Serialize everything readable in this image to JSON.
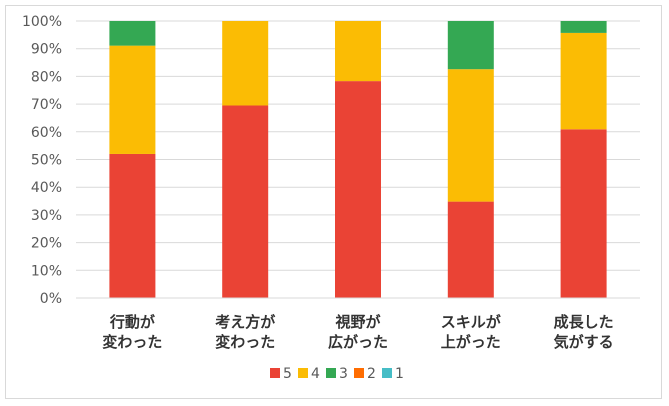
{
  "chart_data": {
    "type": "bar",
    "stacked": true,
    "percent": true,
    "categories": [
      [
        "行動が",
        "変わった"
      ],
      [
        "考え方が",
        "変わった"
      ],
      [
        "視野が",
        "広がった"
      ],
      [
        "スキルが",
        "上がった"
      ],
      [
        "成長した",
        "気がする"
      ]
    ],
    "series": [
      {
        "name": "5",
        "color": "#ea4335",
        "values": [
          52,
          69.5,
          78.3,
          34.8,
          60.9
        ]
      },
      {
        "name": "4",
        "color": "#fbbc04",
        "values": [
          39.1,
          30.5,
          21.7,
          47.8,
          34.8
        ]
      },
      {
        "name": "3",
        "color": "#34a853",
        "values": [
          8.9,
          0,
          0,
          17.4,
          4.3
        ]
      },
      {
        "name": "2",
        "color": "#ff6d01",
        "values": [
          0,
          0,
          0,
          0,
          0
        ]
      },
      {
        "name": "1",
        "color": "#46bdc6",
        "values": [
          0,
          0,
          0,
          0,
          0
        ]
      }
    ],
    "ylim": [
      0,
      100
    ],
    "yticks": [
      "0%",
      "10%",
      "20%",
      "30%",
      "40%",
      "50%",
      "60%",
      "70%",
      "80%",
      "90%",
      "100%"
    ],
    "grid": true,
    "legend_position": "bottom"
  }
}
